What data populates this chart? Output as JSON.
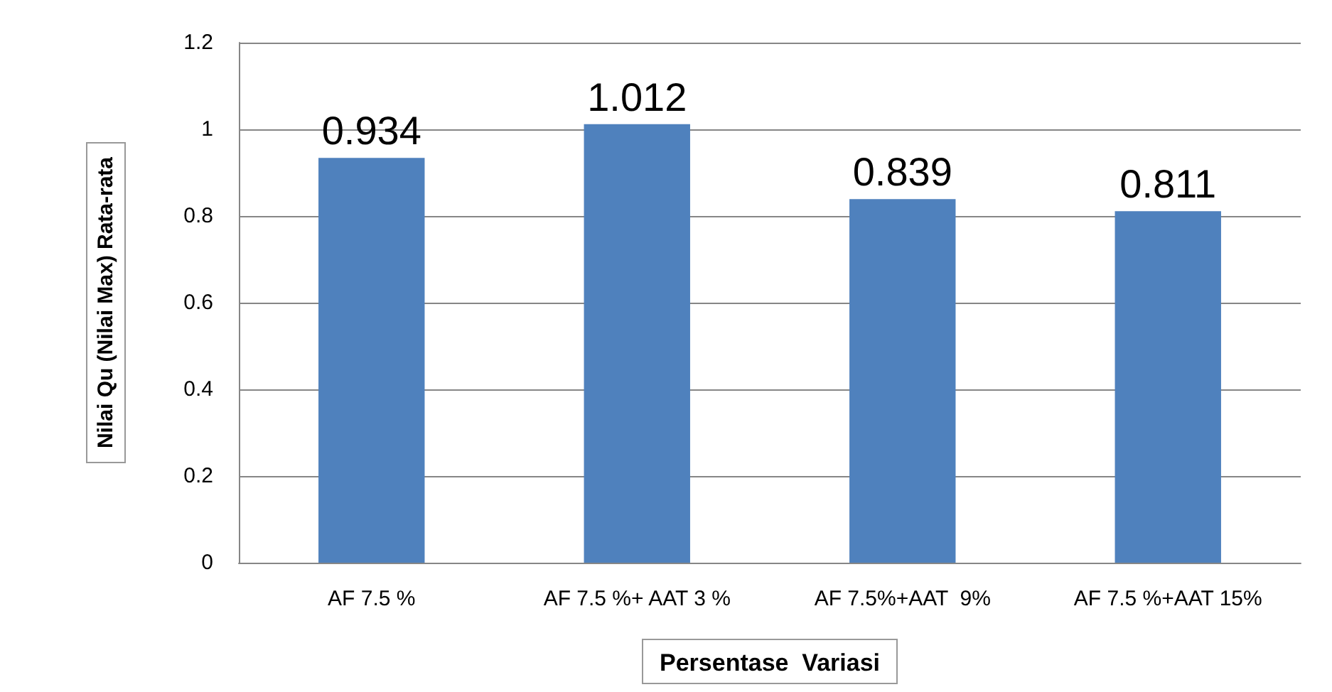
{
  "chart_data": {
    "type": "bar",
    "xlabel": "Persentase  Variasi",
    "ylabel": "Nilai Qu (Nilai Max) Rata-rata",
    "categories": [
      "AF 7.5 %",
      "AF 7.5 %+ AAT 3 %",
      "AF 7.5%+AAT  9%",
      "AF 7.5 %+AAT 15%"
    ],
    "values": [
      0.934,
      1.012,
      0.839,
      0.811
    ],
    "color": "#4f81bd",
    "ylim": [
      0,
      1.2
    ],
    "yticks": [
      0,
      0.2,
      0.4,
      0.6,
      0.8,
      1,
      1.2
    ],
    "grid": "y",
    "data_labels": true
  }
}
